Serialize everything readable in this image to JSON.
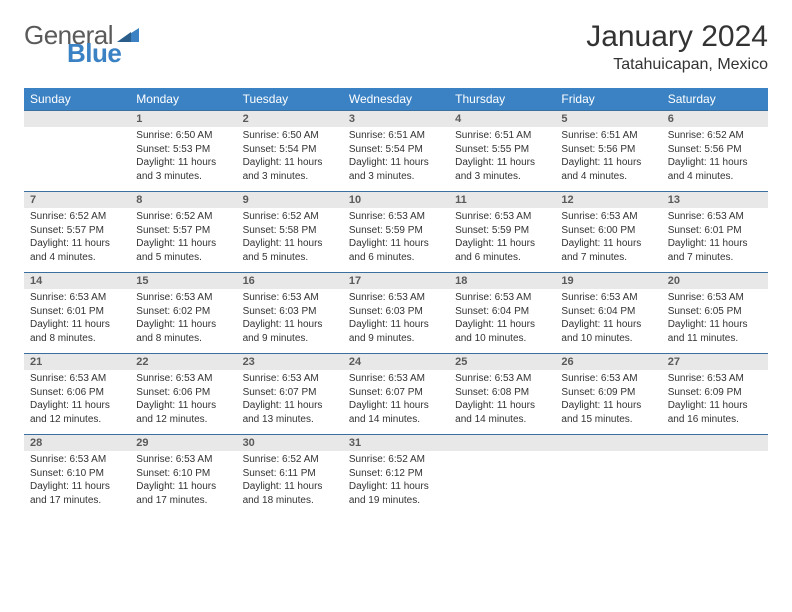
{
  "brand": {
    "part1": "General",
    "part2": "Blue",
    "color_gray": "#5a5a5a",
    "color_blue": "#3b82c4"
  },
  "title": "January 2024",
  "location": "Tatahuicapan, Mexico",
  "colors": {
    "header_bg": "#3b82c4",
    "header_text": "#ffffff",
    "date_bar_bg": "#e8e8e8",
    "date_bar_border": "#3b6fa0",
    "text": "#333333"
  },
  "day_names": [
    "Sunday",
    "Monday",
    "Tuesday",
    "Wednesday",
    "Thursday",
    "Friday",
    "Saturday"
  ],
  "weeks": [
    [
      {
        "date": "",
        "lines": []
      },
      {
        "date": "1",
        "lines": [
          "Sunrise: 6:50 AM",
          "Sunset: 5:53 PM",
          "Daylight: 11 hours and 3 minutes."
        ]
      },
      {
        "date": "2",
        "lines": [
          "Sunrise: 6:50 AM",
          "Sunset: 5:54 PM",
          "Daylight: 11 hours and 3 minutes."
        ]
      },
      {
        "date": "3",
        "lines": [
          "Sunrise: 6:51 AM",
          "Sunset: 5:54 PM",
          "Daylight: 11 hours and 3 minutes."
        ]
      },
      {
        "date": "4",
        "lines": [
          "Sunrise: 6:51 AM",
          "Sunset: 5:55 PM",
          "Daylight: 11 hours and 3 minutes."
        ]
      },
      {
        "date": "5",
        "lines": [
          "Sunrise: 6:51 AM",
          "Sunset: 5:56 PM",
          "Daylight: 11 hours and 4 minutes."
        ]
      },
      {
        "date": "6",
        "lines": [
          "Sunrise: 6:52 AM",
          "Sunset: 5:56 PM",
          "Daylight: 11 hours and 4 minutes."
        ]
      }
    ],
    [
      {
        "date": "7",
        "lines": [
          "Sunrise: 6:52 AM",
          "Sunset: 5:57 PM",
          "Daylight: 11 hours and 4 minutes."
        ]
      },
      {
        "date": "8",
        "lines": [
          "Sunrise: 6:52 AM",
          "Sunset: 5:57 PM",
          "Daylight: 11 hours and 5 minutes."
        ]
      },
      {
        "date": "9",
        "lines": [
          "Sunrise: 6:52 AM",
          "Sunset: 5:58 PM",
          "Daylight: 11 hours and 5 minutes."
        ]
      },
      {
        "date": "10",
        "lines": [
          "Sunrise: 6:53 AM",
          "Sunset: 5:59 PM",
          "Daylight: 11 hours and 6 minutes."
        ]
      },
      {
        "date": "11",
        "lines": [
          "Sunrise: 6:53 AM",
          "Sunset: 5:59 PM",
          "Daylight: 11 hours and 6 minutes."
        ]
      },
      {
        "date": "12",
        "lines": [
          "Sunrise: 6:53 AM",
          "Sunset: 6:00 PM",
          "Daylight: 11 hours and 7 minutes."
        ]
      },
      {
        "date": "13",
        "lines": [
          "Sunrise: 6:53 AM",
          "Sunset: 6:01 PM",
          "Daylight: 11 hours and 7 minutes."
        ]
      }
    ],
    [
      {
        "date": "14",
        "lines": [
          "Sunrise: 6:53 AM",
          "Sunset: 6:01 PM",
          "Daylight: 11 hours and 8 minutes."
        ]
      },
      {
        "date": "15",
        "lines": [
          "Sunrise: 6:53 AM",
          "Sunset: 6:02 PM",
          "Daylight: 11 hours and 8 minutes."
        ]
      },
      {
        "date": "16",
        "lines": [
          "Sunrise: 6:53 AM",
          "Sunset: 6:03 PM",
          "Daylight: 11 hours and 9 minutes."
        ]
      },
      {
        "date": "17",
        "lines": [
          "Sunrise: 6:53 AM",
          "Sunset: 6:03 PM",
          "Daylight: 11 hours and 9 minutes."
        ]
      },
      {
        "date": "18",
        "lines": [
          "Sunrise: 6:53 AM",
          "Sunset: 6:04 PM",
          "Daylight: 11 hours and 10 minutes."
        ]
      },
      {
        "date": "19",
        "lines": [
          "Sunrise: 6:53 AM",
          "Sunset: 6:04 PM",
          "Daylight: 11 hours and 10 minutes."
        ]
      },
      {
        "date": "20",
        "lines": [
          "Sunrise: 6:53 AM",
          "Sunset: 6:05 PM",
          "Daylight: 11 hours and 11 minutes."
        ]
      }
    ],
    [
      {
        "date": "21",
        "lines": [
          "Sunrise: 6:53 AM",
          "Sunset: 6:06 PM",
          "Daylight: 11 hours and 12 minutes."
        ]
      },
      {
        "date": "22",
        "lines": [
          "Sunrise: 6:53 AM",
          "Sunset: 6:06 PM",
          "Daylight: 11 hours and 12 minutes."
        ]
      },
      {
        "date": "23",
        "lines": [
          "Sunrise: 6:53 AM",
          "Sunset: 6:07 PM",
          "Daylight: 11 hours and 13 minutes."
        ]
      },
      {
        "date": "24",
        "lines": [
          "Sunrise: 6:53 AM",
          "Sunset: 6:07 PM",
          "Daylight: 11 hours and 14 minutes."
        ]
      },
      {
        "date": "25",
        "lines": [
          "Sunrise: 6:53 AM",
          "Sunset: 6:08 PM",
          "Daylight: 11 hours and 14 minutes."
        ]
      },
      {
        "date": "26",
        "lines": [
          "Sunrise: 6:53 AM",
          "Sunset: 6:09 PM",
          "Daylight: 11 hours and 15 minutes."
        ]
      },
      {
        "date": "27",
        "lines": [
          "Sunrise: 6:53 AM",
          "Sunset: 6:09 PM",
          "Daylight: 11 hours and 16 minutes."
        ]
      }
    ],
    [
      {
        "date": "28",
        "lines": [
          "Sunrise: 6:53 AM",
          "Sunset: 6:10 PM",
          "Daylight: 11 hours and 17 minutes."
        ]
      },
      {
        "date": "29",
        "lines": [
          "Sunrise: 6:53 AM",
          "Sunset: 6:10 PM",
          "Daylight: 11 hours and 17 minutes."
        ]
      },
      {
        "date": "30",
        "lines": [
          "Sunrise: 6:52 AM",
          "Sunset: 6:11 PM",
          "Daylight: 11 hours and 18 minutes."
        ]
      },
      {
        "date": "31",
        "lines": [
          "Sunrise: 6:52 AM",
          "Sunset: 6:12 PM",
          "Daylight: 11 hours and 19 minutes."
        ]
      },
      {
        "date": "",
        "lines": []
      },
      {
        "date": "",
        "lines": []
      },
      {
        "date": "",
        "lines": []
      }
    ]
  ]
}
